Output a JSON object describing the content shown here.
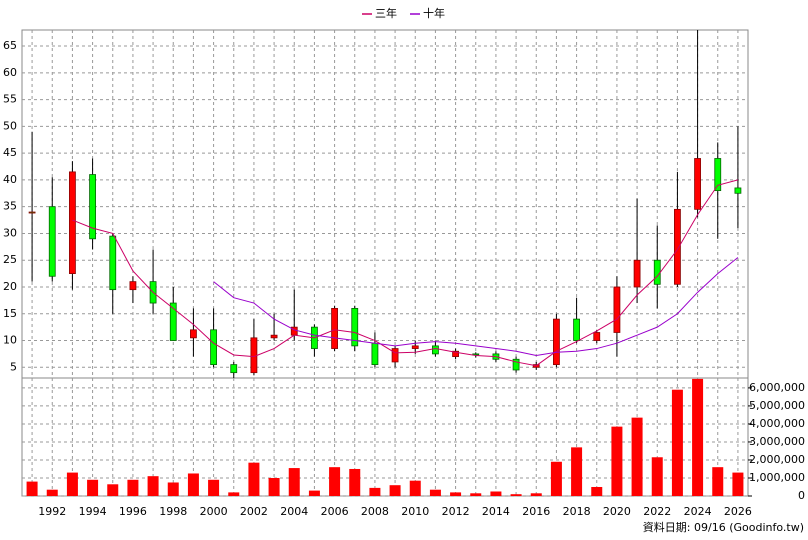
{
  "chart_data": [
    {
      "type": "candlestick",
      "categories": [
        null,
        "1992",
        null,
        "1994",
        null,
        "1996",
        null,
        "1998",
        null,
        "2000",
        null,
        "2002",
        null,
        "2004",
        null,
        "2006",
        null,
        "2008",
        null,
        "2010",
        null,
        "2012",
        null,
        "2014",
        null,
        "2016",
        null,
        "2018",
        null,
        "2020",
        null,
        "2022",
        null,
        "2024",
        null,
        "2026"
      ],
      "open": [
        34,
        35,
        22.5,
        41,
        29.5,
        19.5,
        21,
        17,
        10.5,
        12,
        5.5,
        4,
        10.5,
        11,
        12.5,
        8.5,
        16,
        9.5,
        6,
        8.5,
        9,
        7,
        7.5,
        7.5,
        6.5,
        5,
        5.5,
        14,
        10,
        11.5,
        20,
        25,
        20.5,
        34.5,
        44,
        38.5
      ],
      "high": [
        49,
        40.5,
        43.5,
        44,
        30,
        22,
        27,
        20,
        16,
        16,
        6,
        14,
        15,
        19.5,
        13,
        16.5,
        16.5,
        11.5,
        9,
        10,
        10,
        8.5,
        7.8,
        8,
        7,
        6,
        15,
        18,
        12,
        22,
        36.5,
        31.5,
        41.5,
        68,
        47,
        50
      ],
      "low": [
        21,
        21,
        19.5,
        27,
        15,
        17,
        15,
        10,
        7,
        5,
        3,
        3.5,
        10,
        10,
        7,
        8,
        8,
        5,
        5,
        7.5,
        7,
        6.5,
        6.8,
        6,
        4,
        4.5,
        5,
        9.5,
        9.5,
        7,
        17,
        16,
        20,
        33,
        29,
        31
      ],
      "close": [
        34,
        22,
        41.5,
        29,
        19.5,
        21,
        17,
        10,
        12,
        5.5,
        4,
        10.5,
        11,
        12.5,
        8.5,
        16,
        9,
        5.5,
        8.5,
        9,
        7.5,
        8,
        7.3,
        6.5,
        4.5,
        5.5,
        14,
        10,
        11.5,
        20,
        25,
        20.5,
        34.5,
        44,
        38,
        37.5
      ],
      "up_color": "#ff0000",
      "down_color": "#00ff00",
      "series": [
        {
          "name": "三年",
          "color": "#cc0066",
          "values": [
            null,
            null,
            32.5,
            31,
            30,
            23,
            19,
            16,
            13,
            9.5,
            7.3,
            7,
            8.5,
            11,
            10.5,
            12,
            11.5,
            10,
            7.7,
            7.8,
            8.5,
            7.8,
            7.2,
            7,
            6,
            5.3,
            8,
            9.8,
            11.8,
            14,
            18.5,
            22,
            27,
            33.5,
            39,
            40
          ]
        },
        {
          "name": "十年",
          "color": "#9900cc",
          "values": [
            null,
            null,
            null,
            null,
            null,
            null,
            null,
            null,
            null,
            21,
            18,
            17,
            14,
            12,
            11,
            10.5,
            10,
            9.5,
            9,
            9.5,
            9.8,
            9.5,
            9,
            8.5,
            8,
            7.2,
            7.8,
            8,
            8.5,
            9.5,
            11,
            12.5,
            15,
            19,
            22.5,
            25.5
          ]
        }
      ],
      "ylim": [
        3,
        68
      ],
      "yticks": [
        5,
        10,
        15,
        20,
        25,
        30,
        35,
        40,
        45,
        50,
        55,
        60,
        65
      ],
      "grid": true
    },
    {
      "type": "bar",
      "color": "#ff0000",
      "values": [
        800000,
        350000,
        1300000,
        900000,
        650000,
        900000,
        1100000,
        750000,
        1250000,
        900000,
        200000,
        1850000,
        1000000,
        1550000,
        300000,
        1600000,
        1500000,
        450000,
        600000,
        850000,
        350000,
        200000,
        150000,
        250000,
        100000,
        150000,
        1900000,
        2700000,
        500000,
        3850000,
        4350000,
        2150000,
        5900000,
        6500000,
        1600000,
        1300000
      ],
      "ylim": [
        0,
        6550000
      ],
      "yticks": [
        0,
        {
          "value": 1000000,
          "label": "1,000,000"
        },
        {
          "value": 2000000,
          "label": "2,000,000"
        },
        {
          "value": 3000000,
          "label": "3,000,000"
        },
        {
          "value": 4000000,
          "label": "4,000,000"
        },
        {
          "value": 5000000,
          "label": "5,000,000"
        },
        {
          "value": 6000000,
          "label": "6,000,000"
        }
      ],
      "grid": true,
      "note": "資料日期: 09/16 (Goodinfo.tw)"
    }
  ]
}
